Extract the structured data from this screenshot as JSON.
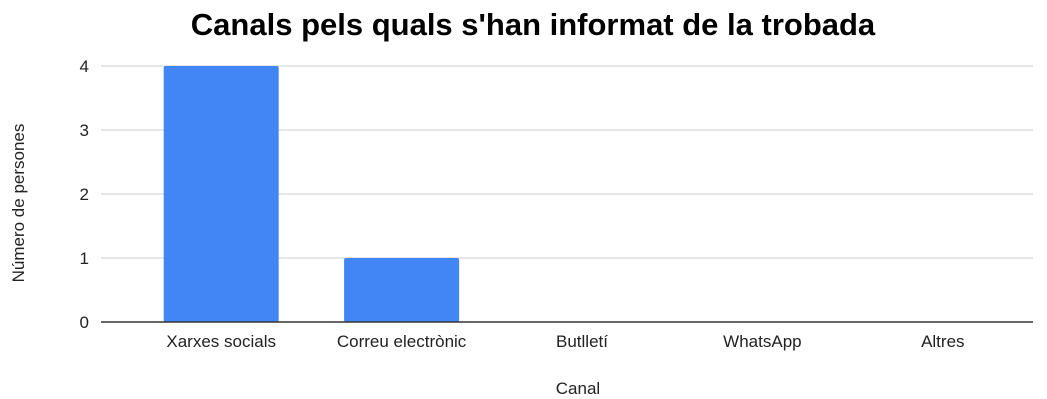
{
  "chart_data": {
    "type": "bar",
    "title": "Canals pels quals s'han informat de la trobada",
    "xlabel": "Canal",
    "ylabel": "Número de persones",
    "categories": [
      "Xarxes socials",
      "Correu electrònic",
      "Butlletí",
      "WhatsApp",
      "Altres"
    ],
    "values": [
      4,
      1,
      0,
      0,
      0
    ],
    "ylim": [
      0,
      4
    ],
    "yticks": [
      "0",
      "1",
      "2",
      "3",
      "4"
    ],
    "grid": true,
    "legend": "none",
    "bar_color": "#4285f4"
  }
}
